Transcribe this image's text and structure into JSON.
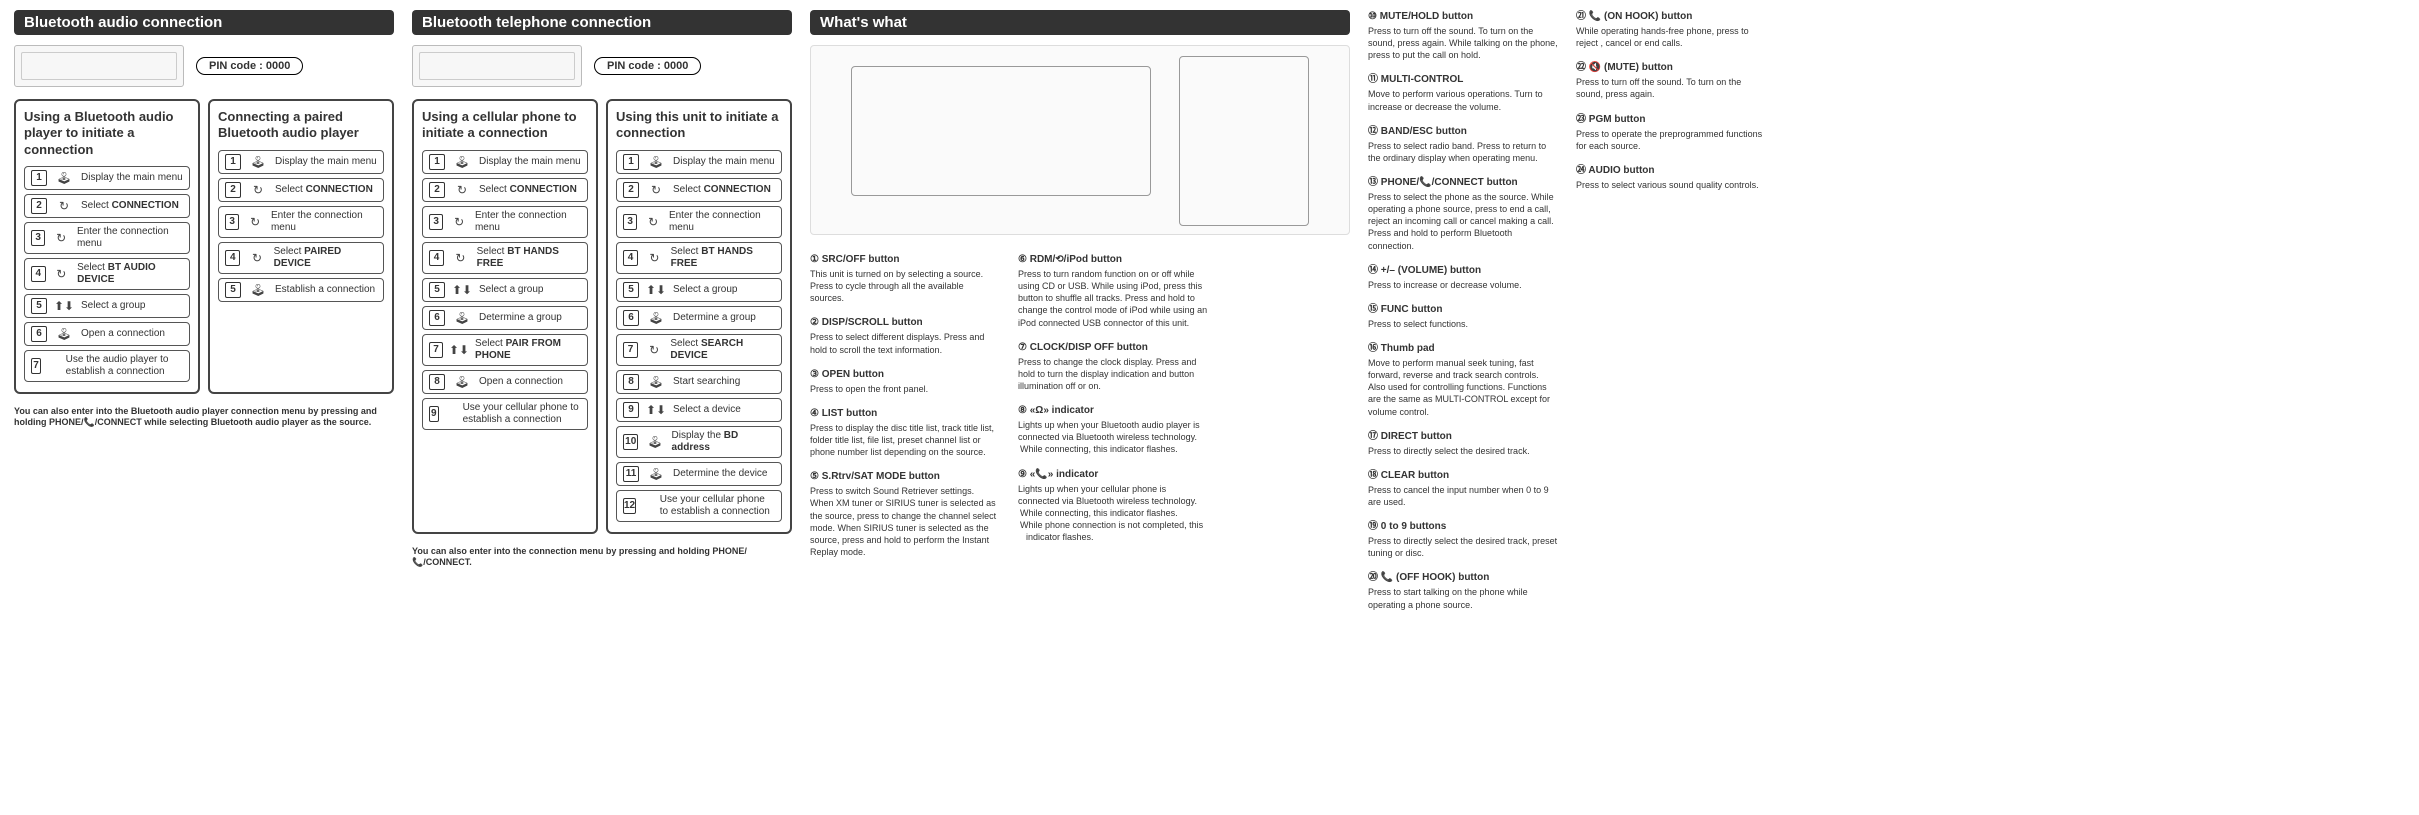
{
  "pin_label": "PIN code : 0000",
  "sections": {
    "a_title": "Bluetooth audio connection",
    "b_title": "Bluetooth telephone connection",
    "c_title": "What's what"
  },
  "boxA1": {
    "title": "Using a Bluetooth audio player to initiate a connection",
    "steps": [
      {
        "n": "1",
        "icon": "🕹",
        "t": "Display the main menu"
      },
      {
        "n": "2",
        "icon": "↻",
        "t": "Select CONNECTION",
        "b": "CONNECTION"
      },
      {
        "n": "3",
        "icon": "↻",
        "t": "Enter the connection menu"
      },
      {
        "n": "4",
        "icon": "↻",
        "t": "Select BT AUDIO DEVICE",
        "b": "BT AUDIO DEVICE"
      },
      {
        "n": "5",
        "icon": "⬆⬇",
        "t": "Select a group"
      },
      {
        "n": "6",
        "icon": "🕹",
        "t": "Open a connection"
      },
      {
        "n": "7",
        "icon": "",
        "t": "Use the audio player to establish a connection"
      }
    ],
    "note": "You can also enter into the Bluetooth audio player connection menu by pressing and holding PHONE/📞/CONNECT while selecting Bluetooth audio player as the source."
  },
  "boxA2": {
    "title": "Connecting a paired Bluetooth audio player",
    "steps": [
      {
        "n": "1",
        "icon": "🕹",
        "t": "Display the main menu"
      },
      {
        "n": "2",
        "icon": "↻",
        "t": "Select CONNECTION",
        "b": "CONNECTION"
      },
      {
        "n": "3",
        "icon": "↻",
        "t": "Enter the connection menu"
      },
      {
        "n": "4",
        "icon": "↻",
        "t": "Select PAIRED DEVICE",
        "b": "PAIRED DEVICE"
      },
      {
        "n": "5",
        "icon": "🕹",
        "t": "Establish a connection"
      }
    ]
  },
  "boxB1": {
    "title": "Using a cellular phone to initiate a connection",
    "steps": [
      {
        "n": "1",
        "icon": "🕹",
        "t": "Display the main menu"
      },
      {
        "n": "2",
        "icon": "↻",
        "t": "Select CONNECTION",
        "b": "CONNECTION"
      },
      {
        "n": "3",
        "icon": "↻",
        "t": "Enter the connection menu"
      },
      {
        "n": "4",
        "icon": "↻",
        "t": "Select BT HANDS FREE",
        "b": "BT HANDS FREE"
      },
      {
        "n": "5",
        "icon": "⬆⬇",
        "t": "Select a group"
      },
      {
        "n": "6",
        "icon": "🕹",
        "t": "Determine a group"
      },
      {
        "n": "7",
        "icon": "⬆⬇",
        "t": "Select PAIR FROM PHONE",
        "b": "PAIR FROM PHONE"
      },
      {
        "n": "8",
        "icon": "🕹",
        "t": "Open a connection"
      },
      {
        "n": "9",
        "icon": "",
        "t": "Use your cellular phone to establish a connection"
      }
    ],
    "note": "You can also enter into the connection menu by pressing and holding PHONE/📞/CONNECT."
  },
  "boxB2": {
    "title": "Using this unit to initiate a connection",
    "steps": [
      {
        "n": "1",
        "icon": "🕹",
        "t": "Display the main menu"
      },
      {
        "n": "2",
        "icon": "↻",
        "t": "Select CONNECTION",
        "b": "CONNECTION"
      },
      {
        "n": "3",
        "icon": "↻",
        "t": "Enter the connection menu"
      },
      {
        "n": "4",
        "icon": "↻",
        "t": "Select BT HANDS FREE",
        "b": "BT HANDS FREE"
      },
      {
        "n": "5",
        "icon": "⬆⬇",
        "t": "Select a group"
      },
      {
        "n": "6",
        "icon": "🕹",
        "t": "Determine a group"
      },
      {
        "n": "7",
        "icon": "↻",
        "t": "Select SEARCH DEVICE",
        "b": "SEARCH DEVICE"
      },
      {
        "n": "8",
        "icon": "🕹",
        "t": "Start searching"
      },
      {
        "n": "9",
        "icon": "⬆⬇",
        "t": "Select a device"
      },
      {
        "n": "10",
        "icon": "🕹",
        "t": "Display the BD address",
        "b": "BD address"
      },
      {
        "n": "11",
        "icon": "🕹",
        "t": "Determine the device"
      },
      {
        "n": "12",
        "icon": "",
        "t": "Use your cellular phone to establish a connection"
      }
    ]
  },
  "ww": {
    "col1": [
      {
        "n": "①",
        "h": "SRC/OFF button",
        "t": "This unit is turned on by selecting a source. Press to cycle through all the available sources."
      },
      {
        "n": "②",
        "h": "DISP/SCROLL button",
        "t": "Press to select different displays. Press and hold to scroll the text information."
      },
      {
        "n": "③",
        "h": "OPEN button",
        "t": "Press to open the front panel."
      },
      {
        "n": "④",
        "h": "LIST button",
        "t": "Press to display the disc title list, track title list, folder title list, file list, preset channel list or phone number list depending on the source."
      },
      {
        "n": "⑤",
        "h": "S.Rtrv/SAT MODE button",
        "t": "Press to switch Sound Retriever settings. When XM tuner or SIRIUS tuner is selected as the source, press to change the channel select mode. When SIRIUS tuner is selected as the source, press and hold to perform the Instant Replay mode."
      }
    ],
    "col2": [
      {
        "n": "⑥",
        "h": "RDM/⟲/iPod button",
        "t": "Press to turn random function on or off while using CD or USB. While using iPod, press this button to shuffle all tracks. Press and hold to change the control mode of iPod while using an iPod connected USB connector of this unit."
      },
      {
        "n": "⑦",
        "h": "CLOCK/DISP OFF button",
        "t": "Press to change the clock display. Press and hold to turn the display indication and button illumination off or on."
      },
      {
        "n": "⑧",
        "h": "«Ω» indicator",
        "t": "Lights up when your Bluetooth audio player is connected via Bluetooth wireless technology.",
        "extra": [
          "While connecting, this indicator flashes."
        ]
      },
      {
        "n": "⑨",
        "h": "«📞» indicator",
        "t": "Lights up when your cellular phone is connected via Bluetooth wireless technology.",
        "extra": [
          "While connecting, this indicator flashes.",
          "While phone connection is not completed, this indicator flashes."
        ]
      }
    ],
    "col3": [
      {
        "n": "⑩",
        "h": "MUTE/HOLD button",
        "t": "Press to turn off the sound. To turn on the sound, press again. While talking on the phone, press to put the call on hold."
      },
      {
        "n": "⑪",
        "h": "MULTI-CONTROL",
        "t": "Move to perform various operations. Turn to increase or decrease the volume."
      },
      {
        "n": "⑫",
        "h": "BAND/ESC button",
        "t": "Press to select radio band.  Press to return to the ordinary display when operating menu."
      },
      {
        "n": "⑬",
        "h": "PHONE/📞/CONNECT button",
        "t": "Press to select the phone as the source. While operating a phone source, press to end a call, reject an incoming call or cancel making a call. Press and hold to perform Bluetooth connection."
      },
      {
        "n": "⑭",
        "h": "+/– (VOLUME) button",
        "t": "Press to increase or decrease volume."
      },
      {
        "n": "⑮",
        "h": "FUNC button",
        "t": "Press to select functions."
      },
      {
        "n": "⑯",
        "h": "Thumb pad",
        "t": "Move to perform manual seek tuning, fast forward, reverse and track search controls. Also used for controlling functions. Functions are the same as MULTI-CONTROL except for volume control."
      },
      {
        "n": "⑰",
        "h": "DIRECT button",
        "t": "Press to directly select the desired track."
      },
      {
        "n": "⑱",
        "h": "CLEAR button",
        "t": "Press to cancel the input number when 0 to 9 are used."
      },
      {
        "n": "⑲",
        "h": "0 to 9 buttons",
        "t": "Press to directly select the desired track, preset tuning or disc."
      },
      {
        "n": "⑳",
        "h": "📞 (OFF HOOK) button",
        "t": "Press to start talking on the phone while operating a phone source."
      }
    ],
    "col4": [
      {
        "n": "㉑",
        "h": "📞 (ON HOOK) button",
        "t": "While operating hands-free phone, press to reject , cancel or end calls."
      },
      {
        "n": "㉒",
        "h": "🔇 (MUTE) button",
        "t": "Press to turn off the sound. To turn on the sound, press again."
      },
      {
        "n": "㉓",
        "h": "PGM button",
        "t": "Press to operate the preprogrammed functions for each source."
      },
      {
        "n": "㉔",
        "h": "AUDIO button",
        "t": "Press to select various sound quality controls."
      }
    ]
  }
}
